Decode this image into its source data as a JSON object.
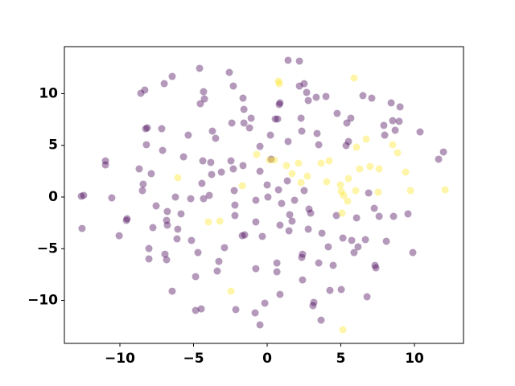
{
  "chart_data": {
    "type": "scatter",
    "xlim": [
      -13.77,
      13.33
    ],
    "ylim": [
      -14.16,
      14.55
    ],
    "xticks": [
      {
        "value": -10,
        "label": "−10"
      },
      {
        "value": -5,
        "label": "−5"
      },
      0,
      5,
      10
    ],
    "yticks": [
      {
        "value": -10,
        "label": "−10"
      },
      {
        "value": -5,
        "label": "−5"
      },
      0,
      5,
      10
    ],
    "grid": false,
    "series": [
      {
        "color": "#440154",
        "x": [
          -12.62,
          -12.46,
          -12.57,
          -10.98,
          -10.98,
          -10.55,
          -10.05,
          -9.56,
          -9.51,
          -8.69,
          -8.47,
          -8.42,
          -8.25,
          -8.14,
          -8.2,
          -8.58,
          -8.31,
          -7.87,
          -8.03,
          -8.03,
          -7.76,
          -7.54,
          -7.1,
          -7.16,
          -6.83,
          -6.99,
          -6.78,
          -6.78,
          -6.94,
          -6.83,
          -6.45,
          -6.45,
          -6.23,
          -6.12,
          -6.07,
          -5.85,
          -5.68,
          -5.36,
          -5.19,
          -5.14,
          -4.86,
          -4.7,
          -4.86,
          -4.54,
          -4.48,
          -4.59,
          -4.32,
          -4.43,
          -4.37,
          -4.26,
          -4.32,
          -3.93,
          -3.77,
          -3.83,
          -3.72,
          -3.5,
          -3.28,
          -3.39,
          -3.11,
          -2.9,
          -2.57,
          -2.3,
          -2.24,
          -2.46,
          -2.4,
          -2.19,
          -2.19,
          -2.3,
          -2.13,
          -1.69,
          -1.53,
          -1.64,
          -1.58,
          -1.58,
          -1.64,
          -1.09,
          -1.2,
          -0.77,
          -0.77,
          -0.77,
          -0.82,
          -0.49,
          -0.33,
          -0.49,
          -0.16,
          0,
          0.05,
          0.22,
          0.27,
          0.66,
          0.71,
          0.77,
          0.82,
          0.87,
          0.87,
          0.87,
          0.66,
          0.98,
          1.42,
          1.48,
          1.53,
          1.37,
          1.42,
          1.69,
          2.19,
          2.3,
          2.19,
          2.35,
          2.4,
          2.35,
          2.51,
          2.4,
          2.51,
          2.68,
          2.84,
          2.95,
          2.79,
          3.11,
          3.17,
          3.33,
          3.39,
          3.5,
          3.5,
          3.72,
          3.66,
          3.99,
          4.15,
          4.26,
          4.48,
          4.75,
          4.7,
          5.03,
          5.14,
          5.36,
          5.41,
          5.52,
          5.68,
          5.74,
          5.9,
          6.07,
          6.17,
          6.5,
          6.67,
          6.78,
          6.89,
          7.1,
          7.27,
          7.32,
          7.38,
          7.6,
          7.92,
          7.98,
          8.09,
          8.42,
          8.52,
          8.58,
          8.69,
          8.96,
          9.02,
          9.56,
          9.89,
          10.38,
          11.64,
          11.97,
          2.79,
          0.55,
          -0.49,
          1.86
        ],
        "values": [
          0.08,
          0.16,
          -3.04,
          3.5,
          3.11,
          -0.08,
          -3.74,
          -2.26,
          -2.1,
          2.72,
          0.62,
          1.25,
          6.61,
          6.69,
          5.06,
          10.04,
          10.35,
          2.26,
          -4.98,
          -5.99,
          -2.96,
          -0.86,
          4.51,
          6.61,
          -2.26,
          10.97,
          -1.4,
          -2.72,
          -5.53,
          -6.07,
          11.67,
          -9.11,
          0,
          -4.05,
          -3.11,
          -1.63,
          3.89,
          5.99,
          -0.16,
          -4.2,
          -7.7,
          -5.37,
          -10.97,
          9.03,
          -10.82,
          12.45,
          10.19,
          1.32,
          3.5,
          9.49,
          -0.16,
          0.16,
          2.18,
          3.35,
          6.38,
          5.68,
          -6.23,
          -7.16,
          2.41,
          -4.9,
          12.06,
          10.74,
          0.62,
          3.5,
          7.16,
          -1.79,
          -0.78,
          2.72,
          -10.89,
          -3.74,
          -3.66,
          9.57,
          8.48,
          7.16,
          3.04,
          7.63,
          6.69,
          -2.41,
          -6.93,
          -0.31,
          -11.21,
          -12.37,
          -3.81,
          2.49,
          -10.27,
          1.17,
          0,
          5.99,
          3.66,
          -6.38,
          7.55,
          0.7,
          8.95,
          9.11,
          -2.72,
          -9.42,
          -7.24,
          -0.62,
          5.37,
          -3.27,
          -1.71,
          1.56,
          13.23,
          -2.33,
          10.74,
          7.63,
          13.15,
          6.38,
          -5.53,
          -5.84,
          0.62,
          -8.02,
          10.97,
          10.12,
          -1.17,
          -1.56,
          -3.11,
          -10.51,
          -10.19,
          9.65,
          6.15,
          5.06,
          -6.38,
          -3.5,
          -11.91,
          9.73,
          -4.82,
          -9.03,
          -6.61,
          8.09,
          -1.79,
          -8.95,
          -3.97,
          4.98,
          7.16,
          5.37,
          7.63,
          -4.2,
          -5.37,
          -2.02,
          -4.82,
          9.81,
          -4.12,
          -9.65,
          0.39,
          9.57,
          -1.09,
          -6.61,
          -6.85,
          -1.87,
          6.93,
          5.99,
          -4.28,
          9.11,
          7.39,
          -1.87,
          6.46,
          7.32,
          8.72,
          -1.63,
          -5.37,
          6.3,
          3.66,
          4.36,
          9.34,
          7.55,
          4.9,
          -0.31
        ]
      },
      {
        "color": "#fde725",
        "x": [
          -6.07,
          -1.69,
          -0.71,
          0.49,
          0.16,
          0.82,
          0.77,
          1.31,
          1.69,
          2.13,
          2.73,
          2.3,
          3.66,
          4.21,
          4.04,
          4.97,
          5.03,
          5.19,
          5.08,
          5.14,
          6.07,
          6.28,
          6.01,
          6.99,
          6.72,
          7.6,
          7.54,
          8.52,
          8.85,
          9.4,
          9.73,
          12.08,
          -3.99,
          -3.22,
          -2.46,
          5.9,
          5.46,
          5.52
        ],
        "values": [
          1.87,
          1.09,
          4.12,
          3.58,
          3.58,
          10.97,
          11.21,
          3.04,
          2.26,
          3.27,
          2.02,
          1.4,
          3.27,
          3.5,
          1.48,
          1.17,
          0.54,
          0.16,
          -1.56,
          -12.84,
          4.82,
          2.72,
          0.62,
          2.96,
          5.6,
          2.72,
          0.47,
          5.06,
          4.28,
          2.41,
          0.62,
          0.7,
          -2.41,
          -2.33,
          -9.11,
          11.52,
          -0.39,
          1.79
        ]
      }
    ]
  }
}
